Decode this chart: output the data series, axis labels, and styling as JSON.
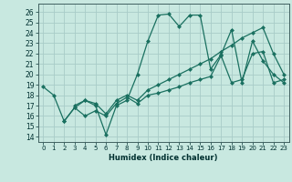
{
  "title": "",
  "xlabel": "Humidex (Indice chaleur)",
  "ylabel": "",
  "xlim": [
    -0.5,
    23.5
  ],
  "ylim": [
    13.5,
    26.8
  ],
  "background_color": "#c8e8e0",
  "grid_color": "#a8ccc8",
  "line_color": "#1a7060",
  "marker_color": "#1a7060",
  "lines": [
    {
      "x": [
        0,
        1,
        2,
        3,
        4,
        5,
        6,
        7,
        8,
        9,
        10,
        11,
        12,
        13,
        14,
        15,
        16,
        17,
        18,
        19,
        20,
        21,
        22,
        23
      ],
      "y": [
        18.8,
        18.0,
        15.5,
        16.8,
        17.5,
        17.0,
        14.2,
        17.0,
        17.5,
        20.0,
        23.2,
        25.7,
        25.8,
        24.6,
        25.7,
        25.7,
        20.5,
        21.9,
        24.3,
        19.2,
        23.2,
        21.3,
        20.0,
        19.2
      ]
    },
    {
      "x": [
        2,
        3,
        4,
        5,
        6,
        7,
        8,
        9,
        10,
        11,
        12,
        13,
        14,
        15,
        16,
        17,
        18,
        19,
        20,
        21,
        22,
        23
      ],
      "y": [
        15.5,
        16.8,
        16.0,
        16.5,
        16.0,
        17.2,
        17.8,
        17.2,
        18.0,
        18.2,
        18.5,
        18.8,
        19.2,
        19.5,
        19.8,
        21.8,
        19.2,
        19.5,
        22.0,
        22.2,
        19.2,
        19.5
      ]
    },
    {
      "x": [
        3,
        4,
        5,
        6,
        7,
        8,
        9,
        10,
        11,
        12,
        13,
        14,
        15,
        16,
        17,
        18,
        19,
        20,
        21,
        22,
        23
      ],
      "y": [
        17.0,
        17.5,
        17.2,
        16.2,
        17.5,
        18.0,
        17.5,
        18.5,
        19.0,
        19.5,
        20.0,
        20.5,
        21.0,
        21.5,
        22.2,
        22.8,
        23.5,
        24.0,
        24.5,
        22.0,
        20.0
      ]
    }
  ],
  "xticks": [
    0,
    1,
    2,
    3,
    4,
    5,
    6,
    7,
    8,
    9,
    10,
    11,
    12,
    13,
    14,
    15,
    16,
    17,
    18,
    19,
    20,
    21,
    22,
    23
  ],
  "yticks": [
    14,
    15,
    16,
    17,
    18,
    19,
    20,
    21,
    22,
    23,
    24,
    25,
    26
  ]
}
